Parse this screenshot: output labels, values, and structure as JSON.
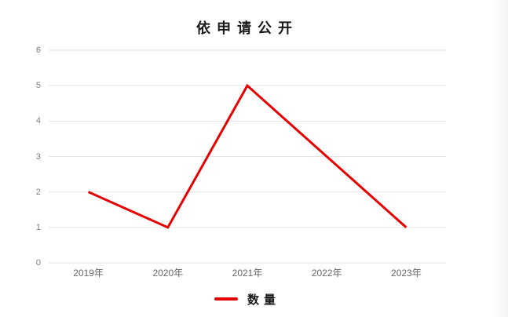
{
  "chart_data": {
    "type": "line",
    "title": "依申请公开",
    "categories": [
      "2019年",
      "2020年",
      "2021年",
      "2022年",
      "2023年"
    ],
    "series": [
      {
        "name": "数量",
        "values": [
          2,
          1,
          5,
          3,
          1
        ],
        "color": "#e60000"
      }
    ],
    "xlabel": "",
    "ylabel": "",
    "ylim": [
      0,
      6
    ],
    "yticks": [
      0,
      1,
      2,
      3,
      4,
      5,
      6
    ],
    "grid": "horizontal",
    "gridline_color": "#e3e3e3",
    "tick_color": "#7f7f7f",
    "legend_position": "bottom"
  }
}
